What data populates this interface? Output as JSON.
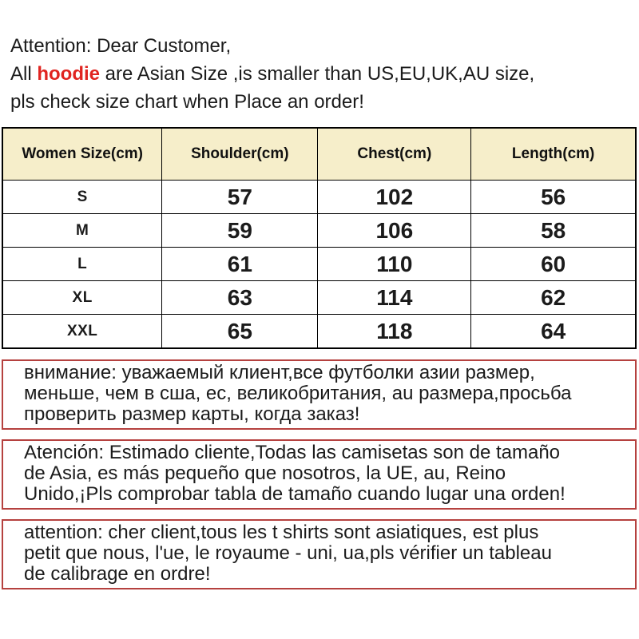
{
  "colors": {
    "highlight_red": "#e02420",
    "notice_border_red": "#b5413f",
    "table_header_bg": "#f6eeca",
    "table_border": "#000000",
    "page_bg": "#ffffff"
  },
  "header": {
    "line1": "Attention: Dear Customer,",
    "line2_prefix": "All ",
    "line2_highlight": "hoodie",
    "line2_suffix": " are  Asian Size ,is smaller than US,EU,UK,AU size,",
    "line3": "pls check size chart when Place an order!"
  },
  "size_table": {
    "columns": [
      "Women Size(cm)",
      "Shoulder(cm)",
      "Chest(cm)",
      "Length(cm)"
    ],
    "rows": [
      {
        "size": "S",
        "shoulder": "57",
        "chest": "102",
        "length": "56"
      },
      {
        "size": "M",
        "shoulder": "59",
        "chest": "106",
        "length": "58"
      },
      {
        "size": "L",
        "shoulder": "61",
        "chest": "110",
        "length": "60"
      },
      {
        "size": "XL",
        "shoulder": "63",
        "chest": "114",
        "length": "62"
      },
      {
        "size": "XXL",
        "shoulder": "65",
        "chest": "118",
        "length": "64"
      }
    ]
  },
  "notices": [
    {
      "language": "russian",
      "lines": [
        "внимание: уважаемый клиент,все футболки азии размер,",
        "меньше, чем в сша, ес, великобритания, au размера,просьба",
        "проверить размер карты, когда заказ!"
      ]
    },
    {
      "language": "spanish",
      "lines": [
        "Atención: Estimado cliente,Todas las camisetas son de tamaño",
        "de Asia, es más pequeño que nosotros, la UE, au, Reino",
        "Unido,¡Pls comprobar tabla de tamaño cuando lugar una orden!"
      ]
    },
    {
      "language": "french",
      "lines": [
        "attention: cher client,tous les t shirts sont asiatiques, est plus",
        "petit que nous, l'ue, le royaume - uni, ua,pls vérifier un tableau",
        "de calibrage en ordre!"
      ]
    }
  ]
}
